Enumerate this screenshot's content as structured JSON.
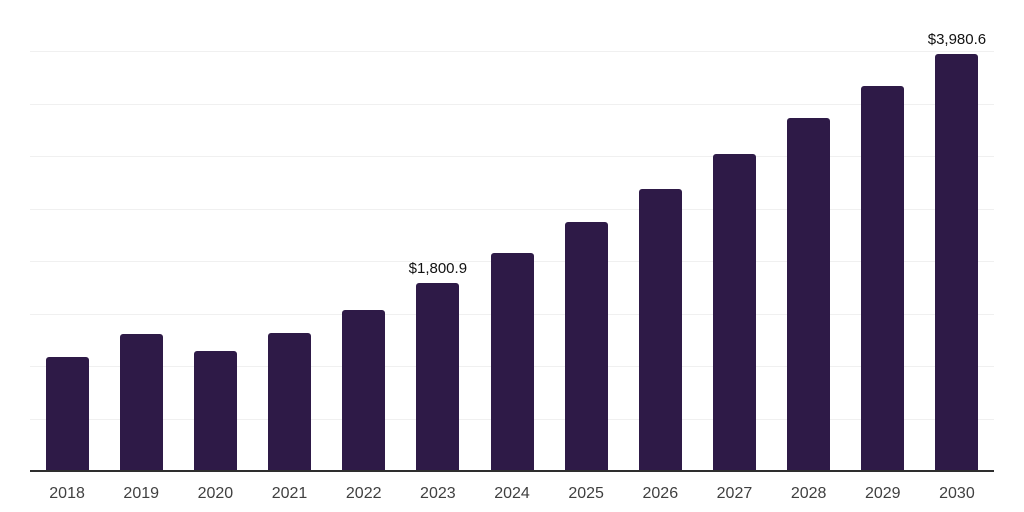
{
  "chart_data": {
    "type": "bar",
    "title": "",
    "xlabel": "",
    "ylabel": "",
    "categories": [
      "2018",
      "2019",
      "2020",
      "2021",
      "2022",
      "2023",
      "2024",
      "2025",
      "2026",
      "2027",
      "2028",
      "2029",
      "2030"
    ],
    "values": [
      1092,
      1315,
      1152,
      1327,
      1544,
      1800.9,
      2089,
      2385,
      2701,
      3035,
      3373,
      3676,
      3980.6
    ],
    "point_labels": [
      "",
      "",
      "",
      "",
      "",
      "$1,800.9",
      "",
      "",
      "",
      "",
      "",
      "",
      "$3,980.6"
    ],
    "ylim": [
      0,
      4500
    ],
    "grid": true,
    "grid_step": 500,
    "y_axis_labels_visible": false,
    "legend": "none",
    "colors": {
      "bar": "#2e1a47",
      "gridline": "#f0f0f0",
      "axis_line": "#2e2e2e",
      "tick_label": "#404040",
      "data_label": "#111111",
      "background": "#ffffff"
    }
  }
}
